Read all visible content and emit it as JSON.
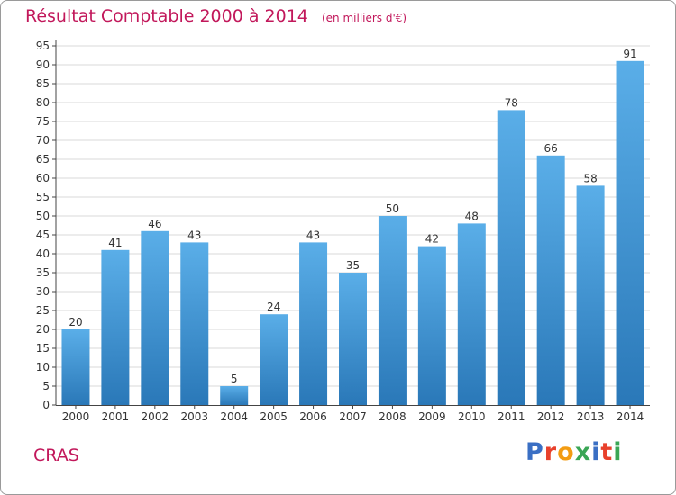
{
  "chart_data": {
    "type": "bar",
    "title": "Résultat Comptable 2000 à 2014",
    "subtitle": "(en milliers d'€)",
    "categories": [
      "2000",
      "2001",
      "2002",
      "2003",
      "2004",
      "2005",
      "2006",
      "2007",
      "2008",
      "2009",
      "2010",
      "2011",
      "2012",
      "2013",
      "2014"
    ],
    "values": [
      20,
      41,
      46,
      43,
      5,
      24,
      43,
      35,
      50,
      42,
      48,
      78,
      66,
      58,
      91
    ],
    "xlabel": "",
    "ylabel": "",
    "ylim": [
      0,
      95
    ],
    "yticks": [
      0,
      5,
      10,
      15,
      20,
      25,
      30,
      35,
      40,
      45,
      50,
      55,
      60,
      65,
      70,
      75,
      80,
      85,
      90,
      95
    ],
    "grid": true
  },
  "place_name": "CRAS",
  "logo": {
    "text": "Proxiti",
    "letters": [
      {
        "char": "P",
        "color": "#3a6fc4"
      },
      {
        "char": "r",
        "color": "#e8412c"
      },
      {
        "char": "o",
        "color": "#f39c12"
      },
      {
        "char": "x",
        "color": "#3aa655"
      },
      {
        "char": "i",
        "color": "#3a6fc4"
      },
      {
        "char": "t",
        "color": "#e8412c"
      },
      {
        "char": "i",
        "color": "#3aa655"
      }
    ]
  },
  "colors": {
    "bar_top": "#5aaee8",
    "bar_bottom": "#2a78b8",
    "title": "#c2185b",
    "grid": "#d9d9d9",
    "axis": "#444444"
  }
}
